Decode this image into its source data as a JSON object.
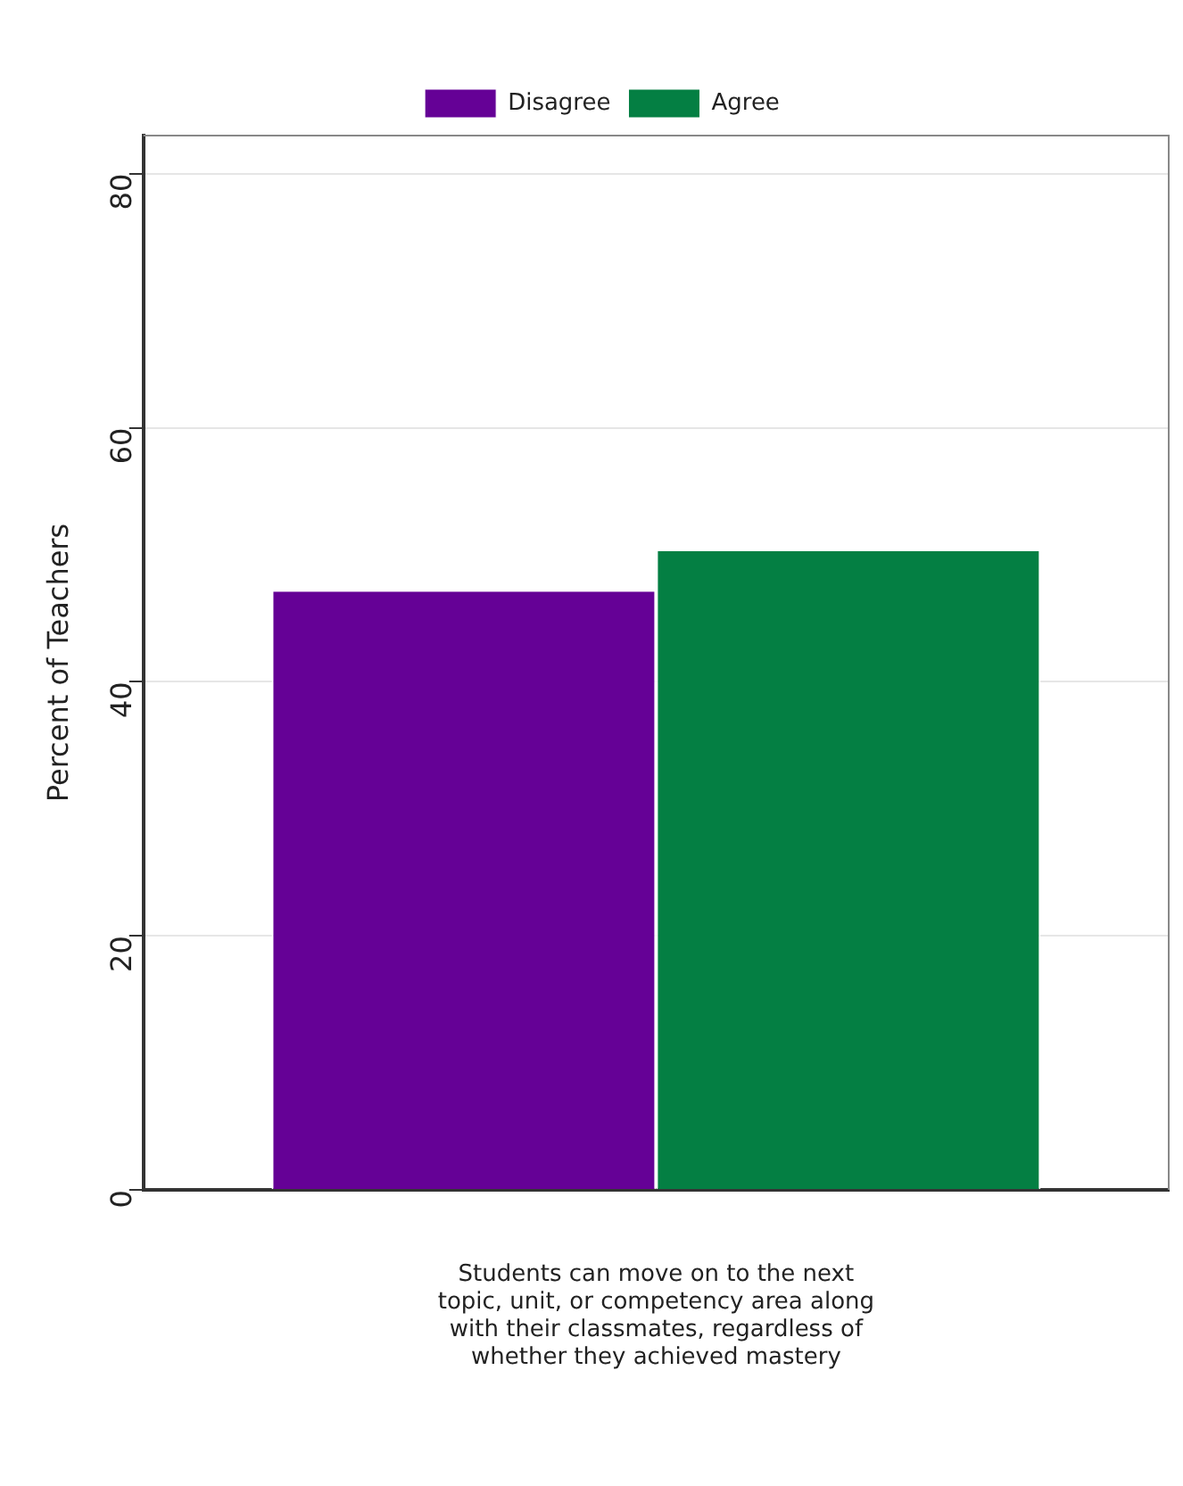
{
  "chart_data": {
    "type": "bar",
    "ylabel": "Percent of Teachers",
    "xlabel": "Students can move on to the next topic, unit, or competency area along with their classmates, regardless of whether they achieved mastery",
    "categories": [
      null
    ],
    "series": [
      {
        "name": "Disagree",
        "color": "#650196",
        "values": [
          47.1
        ]
      },
      {
        "name": "Agree",
        "color": "#047f43",
        "values": [
          50.3
        ]
      }
    ],
    "ylim": [
      0,
      83
    ],
    "yticks": [
      0,
      20,
      40,
      60,
      80
    ],
    "grid": "y",
    "legend": "top"
  }
}
